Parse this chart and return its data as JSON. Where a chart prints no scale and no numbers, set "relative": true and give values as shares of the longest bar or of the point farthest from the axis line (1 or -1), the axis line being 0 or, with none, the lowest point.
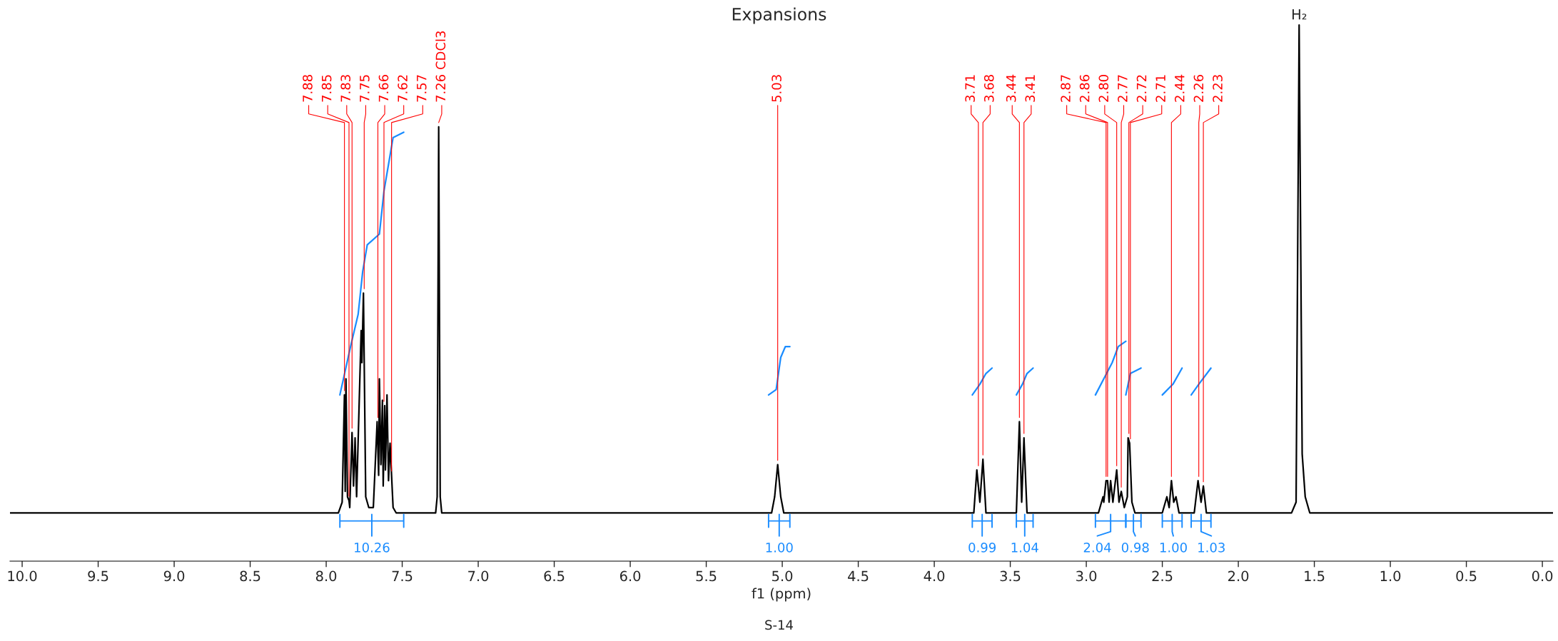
{
  "chart_data": {
    "type": "line",
    "title": "Expansions",
    "xlabel": "f1 (ppm)",
    "relative": true,
    "xlim": [
      10.08,
      -0.07
    ],
    "xticks": [
      {
        "value": 10,
        "label": "10.0"
      },
      {
        "value": 9.5,
        "label": "9.5"
      },
      {
        "value": 9,
        "label": "9.0"
      },
      {
        "value": 8.5,
        "label": "8.5"
      },
      {
        "value": 8,
        "label": "8.0"
      },
      {
        "value": 7.5,
        "label": "7.5"
      },
      {
        "value": 7,
        "label": "7.0"
      },
      {
        "value": 6.5,
        "label": "6.5"
      },
      {
        "value": 6,
        "label": "6.0"
      },
      {
        "value": 5.5,
        "label": "5.5"
      },
      {
        "value": 5,
        "label": "5.0"
      },
      {
        "value": 4.5,
        "label": "4.5"
      },
      {
        "value": 4,
        "label": "4.0"
      },
      {
        "value": 3.5,
        "label": "3.5"
      },
      {
        "value": 3,
        "label": "3.0"
      },
      {
        "value": 2.5,
        "label": "2.5"
      },
      {
        "value": 2,
        "label": "2.0"
      },
      {
        "value": 1.5,
        "label": "1.5"
      },
      {
        "value": 1,
        "label": "1.0"
      },
      {
        "value": 0.5,
        "label": "0.5"
      },
      {
        "value": 0,
        "label": "0.0"
      }
    ],
    "series": [
      {
        "color": "#000000",
        "x": [
          10.08,
          8.0,
          7.92,
          7.895,
          7.88,
          7.875,
          7.87,
          7.86,
          7.85,
          7.845,
          7.83,
          7.82,
          7.81,
          7.8,
          7.77,
          7.765,
          7.755,
          7.74,
          7.72,
          7.69,
          7.665,
          7.655,
          7.65,
          7.64,
          7.63,
          7.625,
          7.615,
          7.61,
          7.6,
          7.59,
          7.58,
          7.57,
          7.56,
          7.54,
          7.28,
          7.27,
          7.26,
          7.25,
          7.24,
          5.07,
          5.05,
          5.03,
          5.01,
          4.99,
          3.74,
          3.72,
          3.7,
          3.68,
          3.66,
          3.46,
          3.44,
          3.425,
          3.41,
          3.39,
          2.92,
          2.89,
          2.885,
          2.87,
          2.86,
          2.85,
          2.84,
          2.825,
          2.8,
          2.785,
          2.77,
          2.75,
          2.73,
          2.725,
          2.715,
          2.7,
          2.68,
          2.5,
          2.47,
          2.455,
          2.44,
          2.425,
          2.41,
          2.39,
          2.29,
          2.265,
          2.245,
          2.23,
          2.21,
          1.65,
          1.62,
          1.6,
          1.58,
          1.56,
          1.53,
          -0.07
        ],
        "values": [
          0.09,
          0.09,
          0.09,
          0.11,
          0.31,
          0.13,
          0.34,
          0.12,
          0.113,
          0.1,
          0.24,
          0.14,
          0.23,
          0.12,
          0.43,
          0.37,
          0.5,
          0.12,
          0.1,
          0.1,
          0.26,
          0.16,
          0.34,
          0.18,
          0.3,
          0.14,
          0.29,
          0.17,
          0.31,
          0.15,
          0.22,
          0.16,
          0.1,
          0.09,
          0.09,
          0.12,
          0.81,
          0.12,
          0.09,
          0.09,
          0.12,
          0.18,
          0.12,
          0.09,
          0.09,
          0.17,
          0.11,
          0.19,
          0.09,
          0.09,
          0.26,
          0.11,
          0.23,
          0.09,
          0.09,
          0.12,
          0.11,
          0.15,
          0.15,
          0.11,
          0.15,
          0.11,
          0.17,
          0.11,
          0.13,
          0.1,
          0.12,
          0.23,
          0.22,
          0.11,
          0.09,
          0.09,
          0.12,
          0.1,
          0.15,
          0.11,
          0.12,
          0.09,
          0.09,
          0.15,
          0.11,
          0.14,
          0.09,
          0.09,
          0.11,
          1.0,
          0.2,
          0.12,
          0.09,
          0.09
        ]
      },
      {
        "color": "#1a8cff",
        "x": [
          7.91,
          7.84,
          7.79,
          7.76,
          7.73,
          7.65,
          7.62,
          7.59,
          7.56,
          7.49
        ],
        "values": [
          0.31,
          0.4,
          0.46,
          0.54,
          0.59,
          0.61,
          0.69,
          0.74,
          0.79,
          0.8
        ]
      },
      {
        "color": "#1a8cff",
        "x": [
          5.09,
          5.04,
          5.01,
          4.98,
          4.95
        ],
        "values": [
          0.31,
          0.32,
          0.38,
          0.4,
          0.4
        ]
      },
      {
        "color": "#1a8cff",
        "x": [
          3.75,
          3.7,
          3.66,
          3.62
        ],
        "values": [
          0.31,
          0.33,
          0.35,
          0.36
        ]
      },
      {
        "color": "#1a8cff",
        "x": [
          3.46,
          3.42,
          3.39,
          3.35
        ],
        "values": [
          0.31,
          0.33,
          0.35,
          0.36
        ]
      },
      {
        "color": "#1a8cff",
        "x": [
          2.94,
          2.83,
          2.79,
          2.74
        ],
        "values": [
          0.31,
          0.37,
          0.4,
          0.41
        ]
      },
      {
        "color": "#1a8cff",
        "x": [
          2.74,
          2.71,
          2.64
        ],
        "values": [
          0.31,
          0.35,
          0.36
        ]
      },
      {
        "color": "#1a8cff",
        "x": [
          2.5,
          2.43,
          2.37
        ],
        "values": [
          0.31,
          0.33,
          0.36
        ]
      },
      {
        "color": "#1a8cff",
        "x": [
          2.31,
          2.26,
          2.18
        ],
        "values": [
          0.31,
          0.33,
          0.36
        ]
      }
    ],
    "annotations": [
      {
        "text": "7.88",
        "x": 7.88,
        "y": 0.31
      },
      {
        "text": "7.85",
        "x": 7.85,
        "y": 0.113
      },
      {
        "text": "7.83",
        "x": 7.83,
        "y": 0.24
      },
      {
        "text": "7.75",
        "x": 7.75,
        "y": 0.5
      },
      {
        "text": "7.66",
        "x": 7.66,
        "y": 0.26
      },
      {
        "text": "7.62",
        "x": 7.62,
        "y": 0.29
      },
      {
        "text": "7.57",
        "x": 7.57,
        "y": 0.16
      },
      {
        "text": "7.26 CDCl3",
        "x": 7.26,
        "y": 0.81
      },
      {
        "text": "5.03",
        "x": 5.03,
        "y": 0.18
      },
      {
        "text": "3.71",
        "x": 3.71,
        "y": 0.17
      },
      {
        "text": "3.68",
        "x": 3.68,
        "y": 0.19
      },
      {
        "text": "3.44",
        "x": 3.44,
        "y": 0.26
      },
      {
        "text": "3.41",
        "x": 3.41,
        "y": 0.23
      },
      {
        "text": "2.87",
        "x": 2.87,
        "y": 0.15
      },
      {
        "text": "2.86",
        "x": 2.86,
        "y": 0.15
      },
      {
        "text": "2.80",
        "x": 2.8,
        "y": 0.17
      },
      {
        "text": "2.77",
        "x": 2.77,
        "y": 0.13
      },
      {
        "text": "2.72",
        "x": 2.72,
        "y": 0.23
      },
      {
        "text": "2.71",
        "x": 2.71,
        "y": 0.22
      },
      {
        "text": "2.44",
        "x": 2.44,
        "y": 0.15
      },
      {
        "text": "2.26",
        "x": 2.26,
        "y": 0.15
      },
      {
        "text": "2.23",
        "x": 2.23,
        "y": 0.14
      },
      {
        "text": "H₂",
        "x": 1.6,
        "y": 1.0
      },
      "10.26",
      "1.00",
      "0.99",
      "1.04",
      "2.04",
      "0.98",
      "1.00",
      "1.03",
      "S-14"
    ]
  }
}
